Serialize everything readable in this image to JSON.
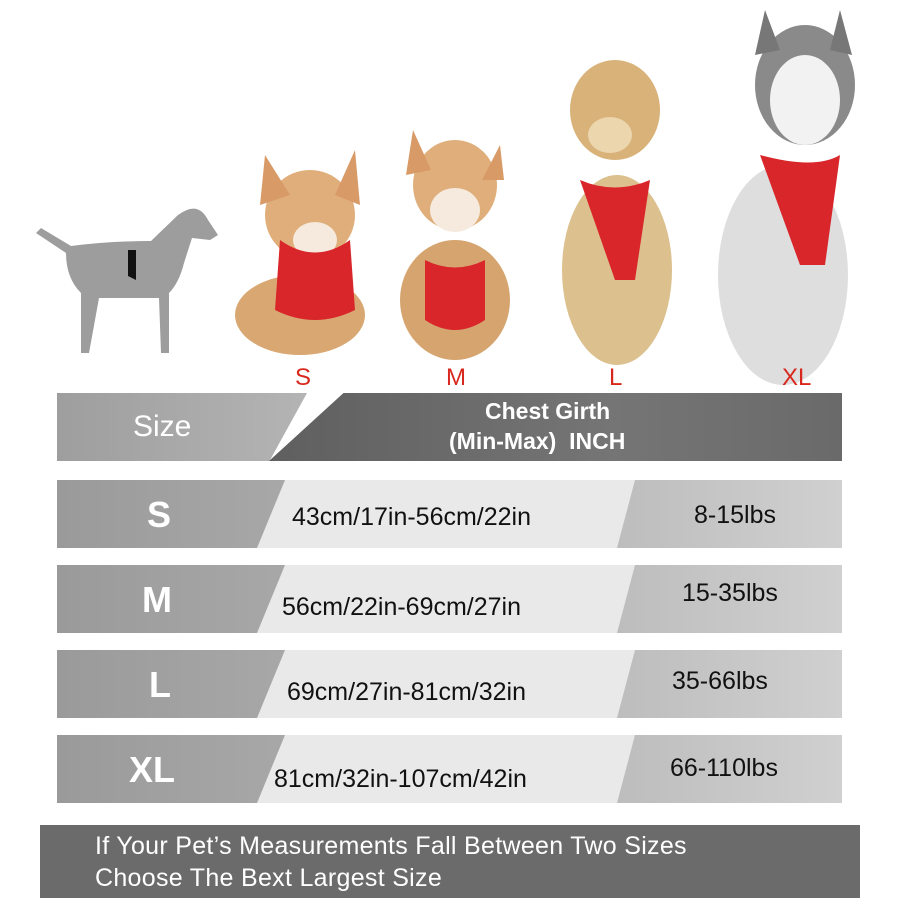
{
  "dog_size_labels": [
    "S",
    "M",
    "L",
    "XL"
  ],
  "table": {
    "header": {
      "size": "Size",
      "chest_line1": "Chest Girth",
      "chest_line2": "(Min-Max)  INCH"
    },
    "rows": [
      {
        "size": "S",
        "chest": "43cm/17in-56cm/22in",
        "weight": "8-15lbs"
      },
      {
        "size": "M",
        "chest": "56cm/22in-69cm/27in",
        "weight": "15-35lbs"
      },
      {
        "size": "L",
        "chest": "69cm/27in-81cm/32in",
        "weight": "35-66lbs"
      },
      {
        "size": "XL",
        "chest": "81cm/32in-107cm/42in",
        "weight": "66-110lbs"
      }
    ]
  },
  "footer": {
    "line1": "If Your Pet’s Measurements Fall Between Two Sizes",
    "line2": "Choose The Bext Largest Size"
  },
  "colors": {
    "accent_red": "#d8281e",
    "harness_red": "#d9262b",
    "dark_band": "#6b6b6b"
  }
}
